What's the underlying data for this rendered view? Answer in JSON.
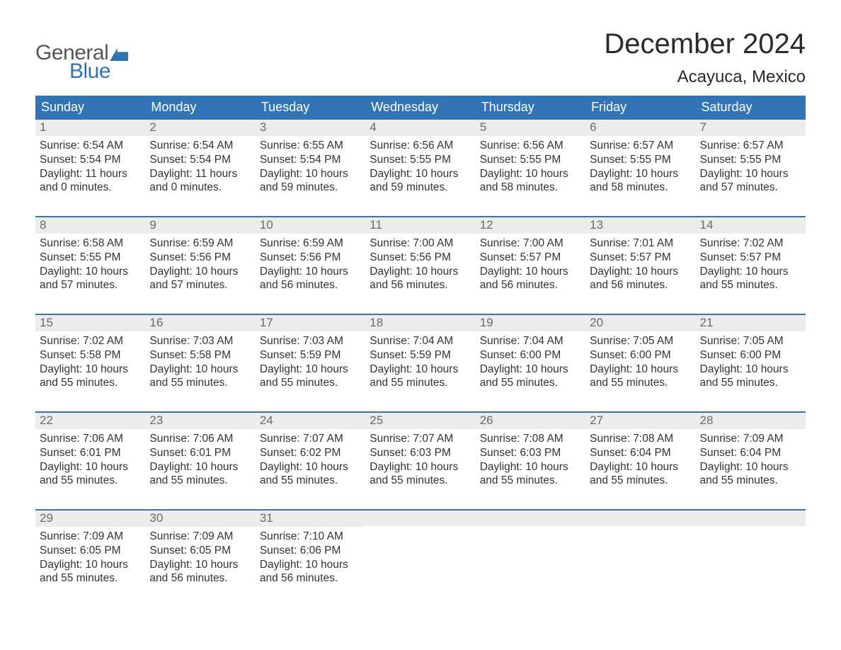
{
  "logo": {
    "text_general": "General",
    "text_blue": "Blue"
  },
  "header": {
    "month_title": "December 2024",
    "location": "Acayuca, Mexico"
  },
  "colors": {
    "brand_blue": "#3374b6",
    "header_bg": "#3374b6",
    "header_text": "#ffffff",
    "daynum_bg": "#ececec",
    "daynum_text": "#6a6a6a",
    "body_text": "#333333",
    "page_bg": "#ffffff"
  },
  "typography": {
    "title_fontsize": 40,
    "location_fontsize": 24,
    "dayheader_fontsize": 18,
    "daynum_fontsize": 17,
    "body_fontsize": 15.5
  },
  "day_headers": [
    "Sunday",
    "Monday",
    "Tuesday",
    "Wednesday",
    "Thursday",
    "Friday",
    "Saturday"
  ],
  "weeks": [
    [
      {
        "n": "1",
        "sunrise": "6:54 AM",
        "sunset": "5:54 PM",
        "dl_h": "11",
        "dl_m": "0"
      },
      {
        "n": "2",
        "sunrise": "6:54 AM",
        "sunset": "5:54 PM",
        "dl_h": "11",
        "dl_m": "0"
      },
      {
        "n": "3",
        "sunrise": "6:55 AM",
        "sunset": "5:54 PM",
        "dl_h": "10",
        "dl_m": "59"
      },
      {
        "n": "4",
        "sunrise": "6:56 AM",
        "sunset": "5:55 PM",
        "dl_h": "10",
        "dl_m": "59"
      },
      {
        "n": "5",
        "sunrise": "6:56 AM",
        "sunset": "5:55 PM",
        "dl_h": "10",
        "dl_m": "58"
      },
      {
        "n": "6",
        "sunrise": "6:57 AM",
        "sunset": "5:55 PM",
        "dl_h": "10",
        "dl_m": "58"
      },
      {
        "n": "7",
        "sunrise": "6:57 AM",
        "sunset": "5:55 PM",
        "dl_h": "10",
        "dl_m": "57"
      }
    ],
    [
      {
        "n": "8",
        "sunrise": "6:58 AM",
        "sunset": "5:55 PM",
        "dl_h": "10",
        "dl_m": "57"
      },
      {
        "n": "9",
        "sunrise": "6:59 AM",
        "sunset": "5:56 PM",
        "dl_h": "10",
        "dl_m": "57"
      },
      {
        "n": "10",
        "sunrise": "6:59 AM",
        "sunset": "5:56 PM",
        "dl_h": "10",
        "dl_m": "56"
      },
      {
        "n": "11",
        "sunrise": "7:00 AM",
        "sunset": "5:56 PM",
        "dl_h": "10",
        "dl_m": "56"
      },
      {
        "n": "12",
        "sunrise": "7:00 AM",
        "sunset": "5:57 PM",
        "dl_h": "10",
        "dl_m": "56"
      },
      {
        "n": "13",
        "sunrise": "7:01 AM",
        "sunset": "5:57 PM",
        "dl_h": "10",
        "dl_m": "56"
      },
      {
        "n": "14",
        "sunrise": "7:02 AM",
        "sunset": "5:57 PM",
        "dl_h": "10",
        "dl_m": "55"
      }
    ],
    [
      {
        "n": "15",
        "sunrise": "7:02 AM",
        "sunset": "5:58 PM",
        "dl_h": "10",
        "dl_m": "55"
      },
      {
        "n": "16",
        "sunrise": "7:03 AM",
        "sunset": "5:58 PM",
        "dl_h": "10",
        "dl_m": "55"
      },
      {
        "n": "17",
        "sunrise": "7:03 AM",
        "sunset": "5:59 PM",
        "dl_h": "10",
        "dl_m": "55"
      },
      {
        "n": "18",
        "sunrise": "7:04 AM",
        "sunset": "5:59 PM",
        "dl_h": "10",
        "dl_m": "55"
      },
      {
        "n": "19",
        "sunrise": "7:04 AM",
        "sunset": "6:00 PM",
        "dl_h": "10",
        "dl_m": "55"
      },
      {
        "n": "20",
        "sunrise": "7:05 AM",
        "sunset": "6:00 PM",
        "dl_h": "10",
        "dl_m": "55"
      },
      {
        "n": "21",
        "sunrise": "7:05 AM",
        "sunset": "6:00 PM",
        "dl_h": "10",
        "dl_m": "55"
      }
    ],
    [
      {
        "n": "22",
        "sunrise": "7:06 AM",
        "sunset": "6:01 PM",
        "dl_h": "10",
        "dl_m": "55"
      },
      {
        "n": "23",
        "sunrise": "7:06 AM",
        "sunset": "6:01 PM",
        "dl_h": "10",
        "dl_m": "55"
      },
      {
        "n": "24",
        "sunrise": "7:07 AM",
        "sunset": "6:02 PM",
        "dl_h": "10",
        "dl_m": "55"
      },
      {
        "n": "25",
        "sunrise": "7:07 AM",
        "sunset": "6:03 PM",
        "dl_h": "10",
        "dl_m": "55"
      },
      {
        "n": "26",
        "sunrise": "7:08 AM",
        "sunset": "6:03 PM",
        "dl_h": "10",
        "dl_m": "55"
      },
      {
        "n": "27",
        "sunrise": "7:08 AM",
        "sunset": "6:04 PM",
        "dl_h": "10",
        "dl_m": "55"
      },
      {
        "n": "28",
        "sunrise": "7:09 AM",
        "sunset": "6:04 PM",
        "dl_h": "10",
        "dl_m": "55"
      }
    ],
    [
      {
        "n": "29",
        "sunrise": "7:09 AM",
        "sunset": "6:05 PM",
        "dl_h": "10",
        "dl_m": "55"
      },
      {
        "n": "30",
        "sunrise": "7:09 AM",
        "sunset": "6:05 PM",
        "dl_h": "10",
        "dl_m": "56"
      },
      {
        "n": "31",
        "sunrise": "7:10 AM",
        "sunset": "6:06 PM",
        "dl_h": "10",
        "dl_m": "56"
      },
      null,
      null,
      null,
      null
    ]
  ],
  "labels": {
    "sunrise_prefix": "Sunrise: ",
    "sunset_prefix": "Sunset: ",
    "daylight_prefix": "Daylight: ",
    "hours_word": " hours",
    "and_word": "and ",
    "minutes_word": " minutes."
  }
}
